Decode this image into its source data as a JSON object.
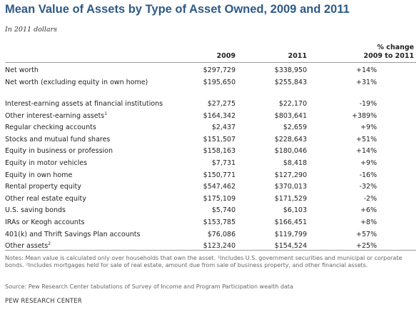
{
  "title": "Mean Value of Assets by Type of Asset Owned, 2009 and 2011",
  "subtitle": "In 2011 dollars",
  "columns": {
    "y2009": "2009",
    "y2011": "2011",
    "change_line1": "% change",
    "change_line2": "2009 to 2011"
  },
  "chart_data": {
    "type": "table",
    "title": "Mean Value of Assets by Type of Asset Owned, 2009 and 2011",
    "units": "In 2011 dollars",
    "columns": [
      "2009",
      "2011",
      "% change 2009 to 2011"
    ],
    "rows": [
      {
        "label": "Net worth",
        "v2009": "$297,729",
        "v2011": "$338,950",
        "change": "+14%"
      },
      {
        "label": "Net worth (excluding equity in own home)",
        "v2009": "$195,650",
        "v2011": "$255,843",
        "change": "+31%"
      },
      {
        "label": "Interest-earning assets at financial institutions",
        "v2009": "$27,275",
        "v2011": "$22,170",
        "change": "-19%"
      },
      {
        "label": "Other interest-earning assets",
        "footnote": "1",
        "v2009": "$164,342",
        "v2011": "$803,641",
        "change": "+389%"
      },
      {
        "label": "Regular checking accounts",
        "v2009": "$2,437",
        "v2011": "$2,659",
        "change": "+9%"
      },
      {
        "label": "Stocks and mutual fund shares",
        "v2009": "$151,507",
        "v2011": "$228,643",
        "change": "+51%"
      },
      {
        "label": "Equity in business or profession",
        "v2009": "$158,163",
        "v2011": "$180,046",
        "change": "+14%"
      },
      {
        "label": "Equity in motor vehicles",
        "v2009": "$7,731",
        "v2011": "$8,418",
        "change": "+9%"
      },
      {
        "label": "Equity in own home",
        "v2009": "$150,771",
        "v2011": "$127,290",
        "change": "-16%"
      },
      {
        "label": "Rental property equity",
        "v2009": "$547,462",
        "v2011": "$370,013",
        "change": "-32%"
      },
      {
        "label": "Other real estate equity",
        "v2009": "$175,109",
        "v2011": "$171,529",
        "change": "-2%"
      },
      {
        "label": "U.S. saving bonds",
        "v2009": "$5,740",
        "v2011": "$6,103",
        "change": "+6%"
      },
      {
        "label": "IRAs or Keogh accounts",
        "v2009": "$153,785",
        "v2011": "$166,451",
        "change": "+8%"
      },
      {
        "label": "401(k) and Thrift Savings Plan accounts",
        "v2009": "$76,086",
        "v2011": "$119,799",
        "change": "+57%"
      },
      {
        "label": "Other assets",
        "footnote": "2",
        "v2009": "$123,240",
        "v2011": "$154,524",
        "change": "+25%"
      }
    ]
  },
  "notes": "Notes: Mean value is calculated only over households that own the asset. ¹Includes U.S. government securities and municipal or corporate bonds. ²Includes mortgages held for sale of real estate, amount due from sale of business property, and other financial assets.",
  "source": "Source: Pew Research Center tabulations of Survey of Income and Program Participation wealth data",
  "brand": "PEW RESEARCH CENTER"
}
